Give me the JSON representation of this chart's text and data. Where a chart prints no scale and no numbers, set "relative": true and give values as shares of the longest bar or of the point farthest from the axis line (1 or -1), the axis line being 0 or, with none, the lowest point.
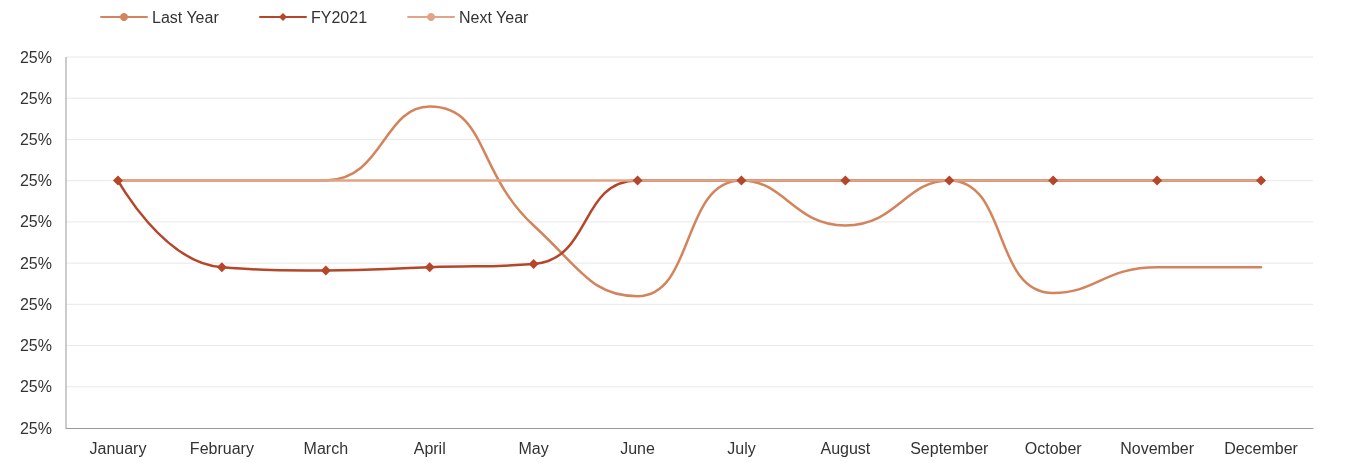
{
  "chart_data": {
    "type": "line",
    "relative": true,
    "categories": [
      "January",
      "February",
      "March",
      "April",
      "May",
      "June",
      "July",
      "August",
      "September",
      "October",
      "November",
      "December"
    ],
    "series": [
      {
        "name": "Last Year",
        "color": "#d4845c",
        "marker": "none",
        "values": [
          0.77,
          0.77,
          0.77,
          1,
          0.63,
          0.41,
          0.77,
          0.63,
          0.77,
          0.42,
          0.5,
          0.5
        ]
      },
      {
        "name": "FY2021",
        "color": "#b5462a",
        "marker": "diamond",
        "values": [
          0.77,
          0.5,
          0.49,
          0.5,
          0.51,
          0.77,
          0.77,
          0.77,
          0.77,
          0.77,
          0.77,
          0.77
        ]
      },
      {
        "name": "Next Year",
        "color": "#e0a586",
        "marker": "none",
        "values": [
          0.77,
          0.77,
          0.77,
          0.77,
          0.77,
          0.77,
          0.77,
          0.77,
          0.77,
          0.77,
          0.77,
          0.77
        ]
      }
    ],
    "annotations": [
      "25%",
      "25%",
      "25%",
      "25%",
      "25%",
      "25%",
      "25%",
      "25%",
      "25%",
      "25%"
    ],
    "grid": "y",
    "legend": "top left",
    "line_style": "solid"
  }
}
